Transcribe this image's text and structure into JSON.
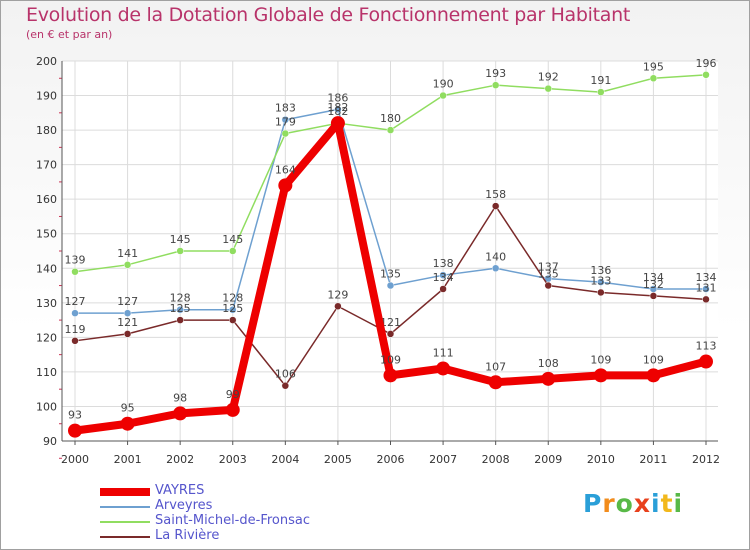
{
  "title": "Evolution de la Dotation Globale de Fonctionnement par Habitant",
  "subtitle": "(en € et par an)",
  "logo": {
    "text": "Proxiti",
    "letter_colors": [
      "#2a9fd8",
      "#f28c1c",
      "#58b947",
      "#e8401c",
      "#2a9fd8",
      "#f2b81c",
      "#58b947"
    ]
  },
  "chart_data": {
    "type": "line",
    "title": "Evolution de la Dotation Globale de Fonctionnement par Habitant",
    "subtitle": "(en € et par an)",
    "x": [
      "2000",
      "2001",
      "2002",
      "2003",
      "2004",
      "2005",
      "2006",
      "2007",
      "2008",
      "2009",
      "2010",
      "2011",
      "2012"
    ],
    "ylim": [
      90,
      200
    ],
    "yticks": [
      90,
      100,
      110,
      120,
      130,
      140,
      150,
      160,
      170,
      180,
      190,
      200
    ],
    "grid": true,
    "legend": "bottom-left",
    "series": [
      {
        "name": "VAYRES",
        "color": "#ee0000",
        "bold": true,
        "values": [
          93,
          95,
          98,
          99,
          164,
          182,
          109,
          111,
          107,
          108,
          109,
          109,
          113
        ]
      },
      {
        "name": "Arveyres",
        "color": "#6ea0d0",
        "bold": false,
        "values": [
          127,
          127,
          128,
          128,
          183,
          186,
          135,
          138,
          140,
          137,
          136,
          134,
          134
        ]
      },
      {
        "name": "Saint-Michel-de-Fronsac",
        "color": "#90dd60",
        "bold": false,
        "values": [
          139,
          141,
          145,
          145,
          179,
          182,
          180,
          190,
          193,
          192,
          191,
          195,
          196
        ]
      },
      {
        "name": "La Rivière",
        "color": "#7a2a2a",
        "bold": false,
        "values": [
          119,
          121,
          125,
          125,
          106,
          129,
          121,
          134,
          158,
          135,
          133,
          132,
          131
        ]
      }
    ]
  }
}
